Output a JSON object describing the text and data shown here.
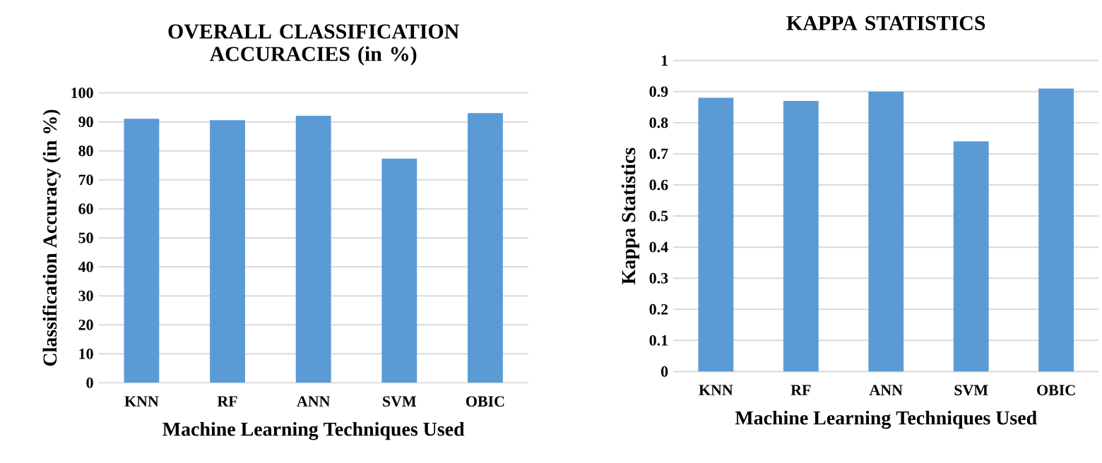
{
  "chart_data": [
    {
      "type": "bar",
      "title": "OVERALL CLASSIFICATION ACCURACIES (in %)",
      "xlabel": "Machine Learning Techniques Used",
      "ylabel": "Classification Accuracy (in %)",
      "categories": [
        "KNN",
        "RF",
        "ANN",
        "SVM",
        "OBIC"
      ],
      "values": [
        91.1,
        90.6,
        92.1,
        77.3,
        93.0
      ],
      "color": "#5b9bd5",
      "ylim": [
        0,
        100
      ],
      "yticks": [
        0,
        10,
        20,
        30,
        40,
        50,
        60,
        70,
        80,
        90,
        100
      ],
      "grid": "y"
    },
    {
      "type": "bar",
      "title": "KAPPA STATISTICS",
      "xlabel": "Machine Learning Techniques Used",
      "ylabel": "Kappa Statistics",
      "categories": [
        "KNN",
        "RF",
        "ANN",
        "SVM",
        "OBIC"
      ],
      "values": [
        0.88,
        0.87,
        0.9,
        0.74,
        0.91
      ],
      "color": "#5b9bd5",
      "ylim": [
        0,
        1
      ],
      "yticks": [
        0,
        0.1,
        0.2,
        0.3,
        0.4,
        0.5,
        0.6,
        0.7,
        0.8,
        0.9,
        1
      ],
      "grid": "y"
    }
  ]
}
